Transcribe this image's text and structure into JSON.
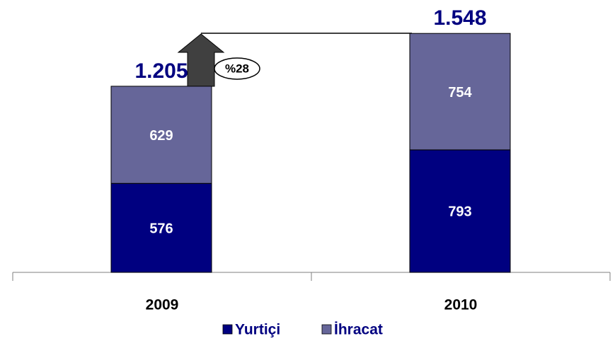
{
  "chart_data": {
    "type": "stacked_bar",
    "categories": [
      "2009",
      "2010"
    ],
    "series": [
      {
        "name": "Yurtiçi",
        "color": "#000080",
        "values": [
          576,
          793
        ]
      },
      {
        "name": "İhracat",
        "color": "#666699",
        "values": [
          629,
          754
        ]
      }
    ],
    "totals": {
      "values": [
        1205,
        1548
      ],
      "value_labels": [
        "1.205",
        "1.548"
      ]
    },
    "annotation": "%28",
    "legend": "bottom"
  }
}
